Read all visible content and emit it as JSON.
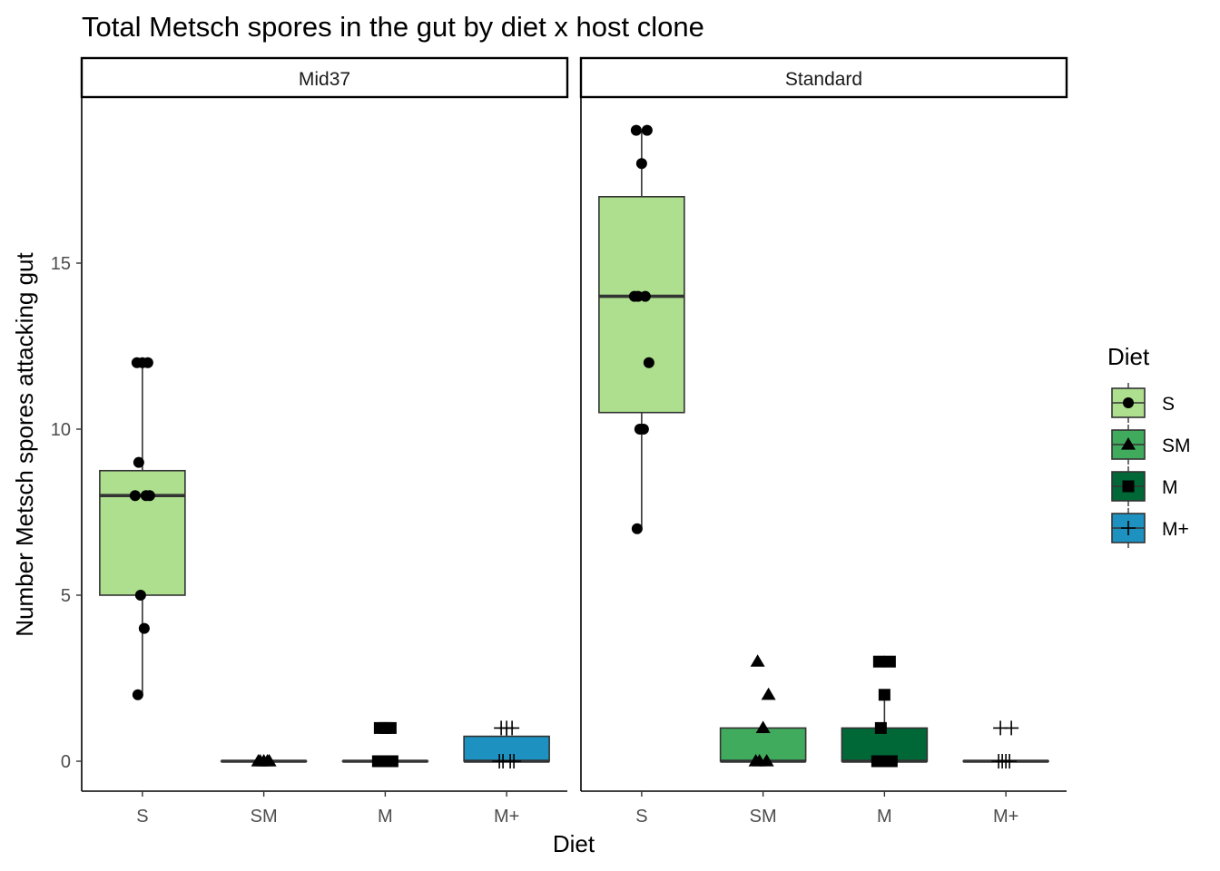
{
  "chart_data": {
    "type": "boxplot",
    "title": "Total Metsch spores in the gut by diet x host clone",
    "xlabel": "Diet",
    "ylabel": "Number Metsch spores attacking gut",
    "categories": [
      "S",
      "SM",
      "M",
      "M+"
    ],
    "y_ticks": [
      0,
      5,
      10,
      15
    ],
    "ylim": [
      -0.9,
      20
    ],
    "grid": false,
    "legend": {
      "title": "Diet",
      "placement": "right",
      "items": [
        {
          "label": "S",
          "fill": "#addf8e",
          "shape": "circle"
        },
        {
          "label": "SM",
          "fill": "#41ab5d",
          "shape": "triangle"
        },
        {
          "label": "M",
          "fill": "#006837",
          "shape": "square"
        },
        {
          "label": "M+",
          "fill": "#1d91c0",
          "shape": "plus"
        }
      ]
    },
    "panels": [
      {
        "name": "Mid37",
        "boxes": [
          {
            "category": "S",
            "min": 2,
            "q1": 5,
            "median": 8,
            "q3": 8.75,
            "max": 12,
            "points": [
              12,
              12,
              12,
              9,
              8,
              8,
              8,
              5,
              4,
              2
            ]
          },
          {
            "category": "SM",
            "min": 0,
            "q1": 0,
            "median": 0,
            "q3": 0,
            "max": 0,
            "points": [
              0,
              0,
              0,
              0,
              0
            ]
          },
          {
            "category": "M",
            "min": 0,
            "q1": 0,
            "median": 0,
            "q3": 0,
            "max": 0,
            "points": [
              1,
              1,
              1,
              0,
              0,
              0,
              0
            ]
          },
          {
            "category": "M+",
            "min": 0,
            "q1": 0,
            "median": 0,
            "q3": 0.75,
            "max": 1,
            "points": [
              1,
              1,
              1,
              0,
              0,
              0,
              0
            ]
          }
        ]
      },
      {
        "name": "Standard",
        "boxes": [
          {
            "category": "S",
            "min": 7,
            "q1": 10.5,
            "median": 14,
            "q3": 17,
            "max": 19,
            "points": [
              19,
              19,
              18,
              14,
              14,
              14,
              12,
              10,
              10,
              7
            ]
          },
          {
            "category": "SM",
            "min": 0,
            "q1": 0,
            "median": 0,
            "q3": 1,
            "max": 1,
            "points": [
              3,
              2,
              1,
              0,
              0,
              0
            ]
          },
          {
            "category": "M",
            "min": 0,
            "q1": 0,
            "median": 0,
            "q3": 1,
            "max": 2,
            "points": [
              3,
              3,
              2,
              1,
              0,
              0,
              0
            ]
          },
          {
            "category": "M+",
            "min": 0,
            "q1": 0,
            "median": 0,
            "q3": 0,
            "max": 0,
            "points": [
              1,
              1,
              0,
              0,
              0,
              0
            ]
          }
        ]
      }
    ]
  }
}
